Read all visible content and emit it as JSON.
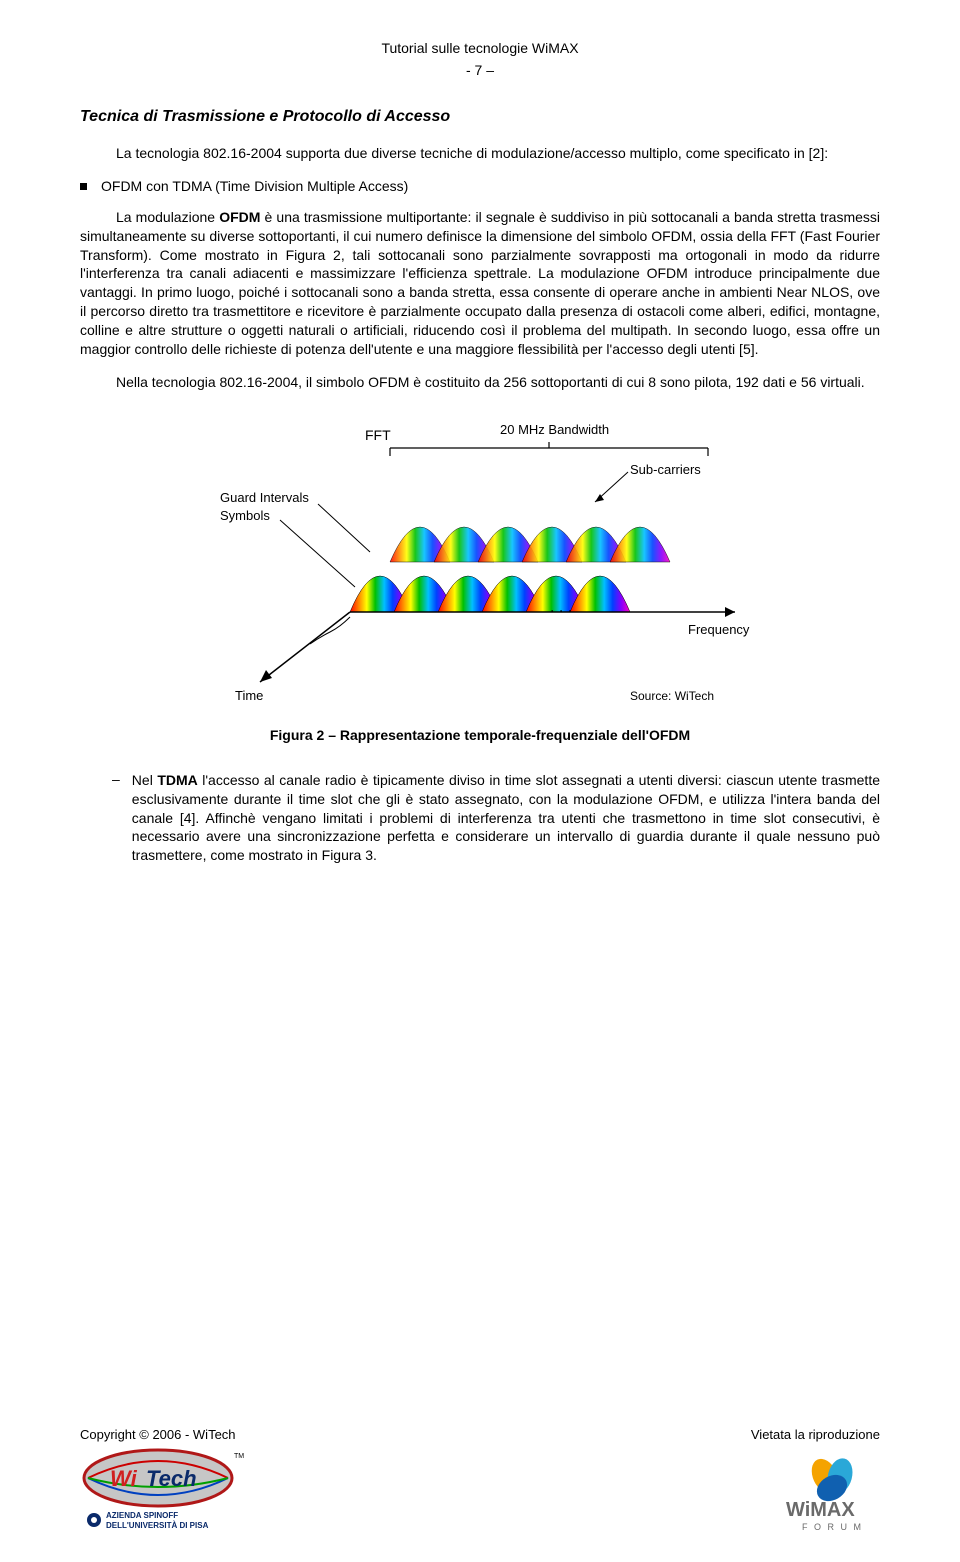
{
  "header": {
    "doc_title": "Tutorial sulle tecnologie WiMAX",
    "page_number": "- 7 –"
  },
  "section": {
    "title": "Tecnica di Trasmissione e Protocollo di Accesso"
  },
  "p1_lead": "La tecnologia 802.16-2004 supporta due diverse tecniche di modulazione/accesso multiplo, come specificato in [2]:",
  "bullet1": "OFDM con TDMA (Time Division Multiple Access)",
  "p2_a": "La modulazione ",
  "p2_b": "OFDM",
  "p2_c": " è una trasmissione multiportante: il segnale è suddiviso in più sottocanali a banda stretta trasmessi simultaneamente su diverse sottoportanti, il cui numero definisce la dimensione del simbolo OFDM, ossia della FFT (Fast Fourier Transform). Come mostrato in Figura 2, tali sottocanali sono parzialmente sovrapposti ma ortogonali in modo da ridurre l'interferenza tra canali adiacenti e massimizzare l'efficienza spettrale. La modulazione OFDM introduce principalmente due vantaggi. In primo luogo, poiché i sottocanali sono a banda stretta, essa consente di operare anche in ambienti Near NLOS, ove il percorso diretto tra trasmettitore e ricevitore è parzialmente occupato dalla presenza di ostacoli come alberi, edifici, montagne, colline e altre strutture o oggetti naturali o artificiali, riducendo così il problema del multipath. In secondo luogo, essa offre un maggior controllo delle richieste di potenza dell'utente e una maggiore flessibilità per l'accesso degli utenti [5].",
  "p3": "Nella tecnologia 802.16-2004, il simbolo OFDM è costituito da 256 sottoportanti di cui 8 sono pilota, 192 dati e 56 virtuali.",
  "figure": {
    "caption": "Figura 2 – Rappresentazione temporale-frequenziale dell'OFDM",
    "labels": {
      "fft": "FFT",
      "bandwidth": "20  MHz Bandwidth",
      "subcarriers": "Sub-carriers",
      "guard": "Guard Intervals",
      "symbols": "Symbols",
      "frequency": "Frequency",
      "time": "Time",
      "source": "Source: WiTech"
    },
    "rainbow_colors": [
      "#ff0000",
      "#ff8000",
      "#ffff00",
      "#00c000",
      "#00c0ff",
      "#0040ff",
      "#8000ff",
      "#ff00c0"
    ],
    "n_humps_back": 6,
    "n_humps_front": 6,
    "axis_color": "#000000",
    "label_color": "#000000",
    "background": "#ffffff"
  },
  "dash_a": "Nel ",
  "dash_b": "TDMA",
  "dash_c": " l'accesso al canale radio è tipicamente diviso in time slot assegnati a utenti diversi: ciascun utente trasmette esclusivamente durante il time slot che gli è stato assegnato, con la modulazione OFDM, e utilizza l'intera banda del canale [4]. Affinchè vengano limitati i problemi di interferenza tra utenti che trasmettono in time slot consecutivi, è necessario avere una sincronizzazione perfetta e considerare un intervallo di guardia durante il quale nessuno può trasmettere, come mostrato in Figura 3.",
  "footer": {
    "copyright": "Copyright © 2006 - WiTech",
    "rights": "Vietata la riproduzione",
    "logo_witech": {
      "bg": "#c6c6c6",
      "oval_border": "#b01818",
      "wi_color": "#d02020",
      "tech_color": "#0a2a6a",
      "swoosh_colors": [
        "#cc0000",
        "#00a000",
        "#0040c0"
      ],
      "spinoff_line1": "AZIENDA SPINOFF",
      "spinoff_line2": "DELL'UNIVERSITÀ DI PISA",
      "spinoff_color": "#0a2a6a"
    },
    "logo_wimax": {
      "text": "WiMAX",
      "forum": "F O R U M",
      "color_text": "#6a6a6a",
      "petal_colors": [
        "#f5a300",
        "#2aa8d8",
        "#1060b0"
      ]
    }
  }
}
